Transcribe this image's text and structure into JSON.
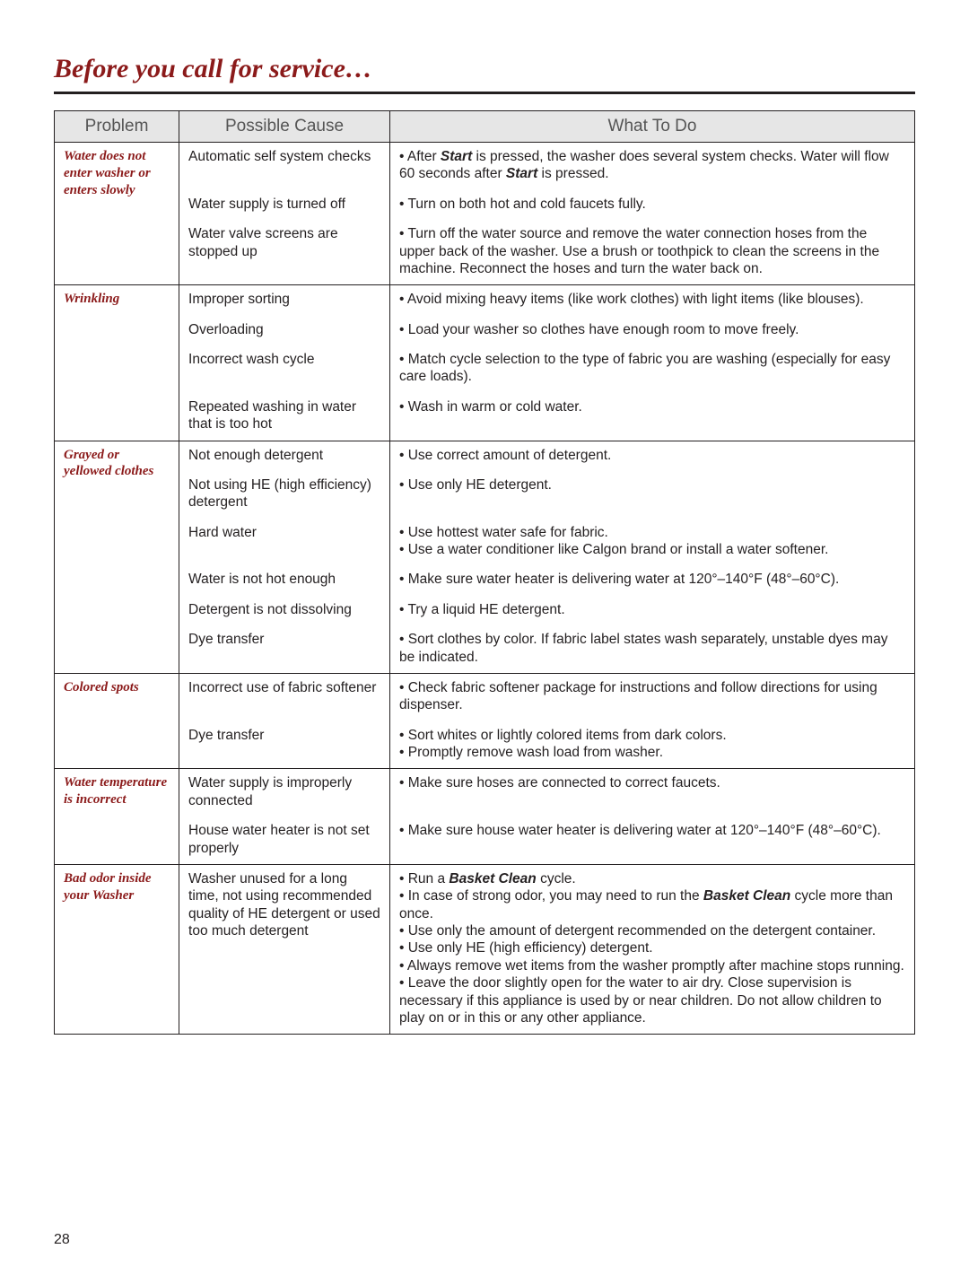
{
  "title": "Before you call for service…",
  "page_number": "28",
  "columns": {
    "c1": "Problem",
    "c2": "Possible Cause",
    "c3": "What To Do"
  },
  "colors": {
    "heading_red": "#8b1a1a",
    "header_bg": "#e6e6e6",
    "header_fg": "#555555",
    "text": "#231f20"
  },
  "p1": "Water does not enter washer or enters slowly",
  "p1c1": "Automatic self system checks",
  "p1w1a": "• After ",
  "p1w1b": "Start",
  "p1w1c": " is pressed, the washer does several system checks. Water will flow 60 seconds after ",
  "p1w1d": "Start",
  "p1w1e": " is pressed.",
  "p1c2": "Water supply is turned off",
  "p1w2": "• Turn on both hot and cold faucets fully.",
  "p1c3": "Water valve screens are stopped up",
  "p1w3": "• Turn off the water source and remove the water connection hoses from the upper back of the washer. Use a brush or toothpick to clean the screens in the machine. Reconnect the hoses and turn the water back on.",
  "p2": "Wrinkling",
  "p2c1": "Improper sorting",
  "p2w1": "• Avoid mixing heavy items (like work clothes) with light items (like blouses).",
  "p2c2": "Overloading",
  "p2w2": "• Load your washer so clothes have enough room to move freely.",
  "p2c3": "Incorrect wash cycle",
  "p2w3": "• Match cycle selection to the type of fabric you are washing (especially for easy care loads).",
  "p2c4": "Repeated washing in water that is too hot",
  "p2w4": "• Wash in warm or cold water.",
  "p3": "Grayed or yellowed clothes",
  "p3c1": "Not enough detergent",
  "p3w1": "• Use correct amount of detergent.",
  "p3c2": "Not using HE (high efficiency) detergent",
  "p3w2": "• Use only HE detergent.",
  "p3c3": "Hard water",
  "p3w3a": "• Use hottest water safe for fabric.",
  "p3w3b": "• Use a water conditioner like Calgon brand or install a water softener.",
  "p3c4": "Water is not hot enough",
  "p3w4": "• Make sure water heater is delivering water at 120°–140°F (48°–60°C).",
  "p3c5": "Detergent is not dissolving",
  "p3w5": "• Try a liquid HE detergent.",
  "p3c6": "Dye transfer",
  "p3w6": "• Sort clothes by color. If fabric label states wash separately, unstable dyes may be indicated.",
  "p4": "Colored spots",
  "p4c1": "Incorrect use of fabric softener",
  "p4w1": "• Check fabric softener package for instructions and follow directions for using dispenser.",
  "p4c2": "Dye transfer",
  "p4w2a": "• Sort whites or lightly colored items from dark colors.",
  "p4w2b": "• Promptly remove wash load from washer.",
  "p5": "Water temperature is incorrect",
  "p5c1": "Water supply is improperly connected",
  "p5w1": "• Make sure hoses are connected to correct faucets.",
  "p5c2": "House water heater is not set properly",
  "p5w2": "• Make sure house water heater is delivering water at 120°–140°F (48°–60°C).",
  "p6": "Bad odor inside your Washer",
  "p6c1": "Washer unused for a long time, not using recommended quality of HE detergent or used too much detergent",
  "p6w1a": "• Run a ",
  "p6w1b": "Basket Clean",
  "p6w1c": " cycle.",
  "p6w2a": "• In case of strong odor, you may need to run the ",
  "p6w2b": "Basket Clean",
  "p6w2c": " cycle more than once.",
  "p6w3": "• Use only the amount of detergent recommended on the detergent container.",
  "p6w4": "• Use only HE (high efficiency) detergent.",
  "p6w5": "• Always remove wet items from the washer promptly after machine stops running.",
  "p6w6": "• Leave the door slightly open for the water to air dry. Close supervision is necessary if this appliance is used by or near children. Do not allow children to play on or in this or any other appliance."
}
